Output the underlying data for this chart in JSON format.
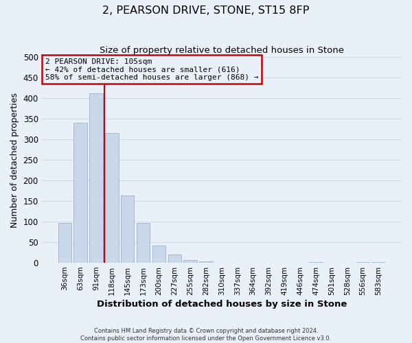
{
  "title": "2, PEARSON DRIVE, STONE, ST15 8FP",
  "subtitle": "Size of property relative to detached houses in Stone",
  "xlabel": "Distribution of detached houses by size in Stone",
  "ylabel": "Number of detached properties",
  "bar_labels": [
    "36sqm",
    "63sqm",
    "91sqm",
    "118sqm",
    "145sqm",
    "173sqm",
    "200sqm",
    "227sqm",
    "255sqm",
    "282sqm",
    "310sqm",
    "337sqm",
    "364sqm",
    "392sqm",
    "419sqm",
    "446sqm",
    "474sqm",
    "501sqm",
    "528sqm",
    "556sqm",
    "583sqm"
  ],
  "bar_values": [
    97,
    340,
    412,
    315,
    163,
    96,
    42,
    20,
    7,
    3,
    0,
    0,
    0,
    0,
    0,
    0,
    2,
    0,
    0,
    2,
    2
  ],
  "bar_color": "#c8d8ea",
  "bar_edge_color": "#9ab5cc",
  "grid_color": "#d0d8e8",
  "bg_color": "#eaf0f8",
  "vline_color": "#cc0000",
  "vline_position": 2.52,
  "annotation_title": "2 PEARSON DRIVE: 105sqm",
  "annotation_line1": "← 42% of detached houses are smaller (616)",
  "annotation_line2": "58% of semi-detached houses are larger (868) →",
  "annotation_box_color": "#cc0000",
  "footer1": "Contains HM Land Registry data © Crown copyright and database right 2024.",
  "footer2": "Contains public sector information licensed under the Open Government Licence v3.0.",
  "ylim": [
    0,
    500
  ],
  "yticks": [
    0,
    50,
    100,
    150,
    200,
    250,
    300,
    350,
    400,
    450,
    500
  ]
}
